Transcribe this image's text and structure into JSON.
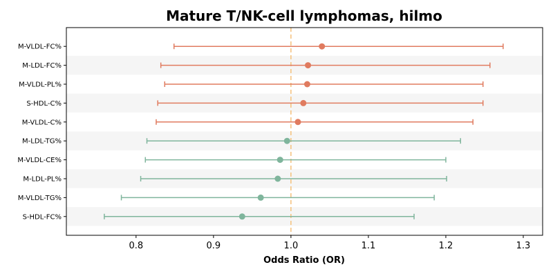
{
  "chart_data": {
    "type": "forest",
    "title": "Mature T/NK-cell lymphomas, hilmo",
    "xlabel": "Odds Ratio (OR)",
    "ylabel": "",
    "xlim": [
      0.71,
      1.325
    ],
    "xticks": [
      0.8,
      0.9,
      1.0,
      1.1,
      1.2,
      1.3
    ],
    "xtick_labels": [
      "0.8",
      "0.9",
      "1.0",
      "1.1",
      "1.2",
      "1.3"
    ],
    "reference_line": 1.0,
    "grid": false,
    "row_banding": true,
    "colors": {
      "positive": "#e07b5f",
      "negative": "#7fb59c",
      "reference": "#f5c07a",
      "band": "#f5f5f5"
    },
    "items": [
      {
        "label": "M-VLDL-FC%",
        "or": 1.04,
        "lower": 0.849,
        "upper": 1.274,
        "group": "positive"
      },
      {
        "label": "M-LDL-FC%",
        "or": 1.022,
        "lower": 0.832,
        "upper": 1.257,
        "group": "positive"
      },
      {
        "label": "M-VLDL-PL%",
        "or": 1.021,
        "lower": 0.837,
        "upper": 1.248,
        "group": "positive"
      },
      {
        "label": "S-HDL-C%",
        "or": 1.016,
        "lower": 0.828,
        "upper": 1.248,
        "group": "positive"
      },
      {
        "label": "M-VLDL-C%",
        "or": 1.009,
        "lower": 0.826,
        "upper": 1.235,
        "group": "positive"
      },
      {
        "label": "M-LDL-TG%",
        "or": 0.995,
        "lower": 0.814,
        "upper": 1.219,
        "group": "negative"
      },
      {
        "label": "M-VLDL-CE%",
        "or": 0.986,
        "lower": 0.812,
        "upper": 1.2,
        "group": "negative"
      },
      {
        "label": "M-LDL-PL%",
        "or": 0.983,
        "lower": 0.806,
        "upper": 1.201,
        "group": "negative"
      },
      {
        "label": "M-VLDL-TG%",
        "or": 0.961,
        "lower": 0.781,
        "upper": 1.185,
        "group": "negative"
      },
      {
        "label": "S-HDL-FC%",
        "or": 0.937,
        "lower": 0.759,
        "upper": 1.159,
        "group": "negative"
      }
    ]
  }
}
